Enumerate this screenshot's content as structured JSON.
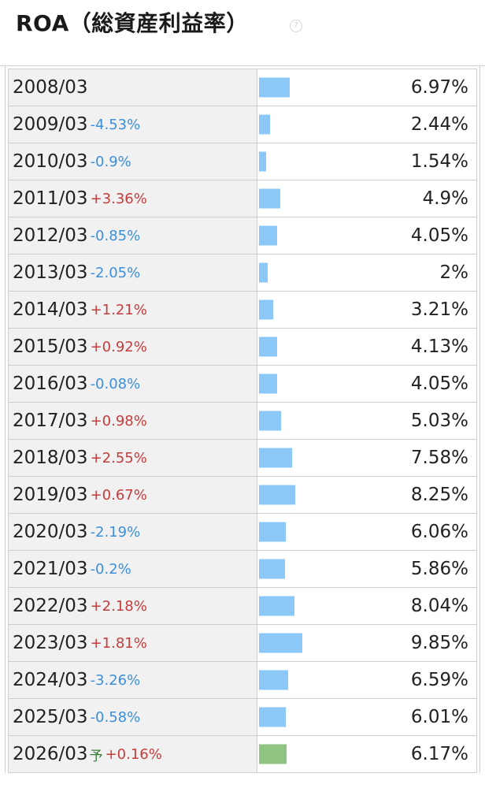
{
  "header": {
    "title": "ROA（総資産利益率）",
    "help_glyph": "?"
  },
  "colors": {
    "bar_actual": "#8cc8f7",
    "bar_forecast": "#8fc482",
    "change_up": "#c43c3c",
    "change_down": "#3c8fd8"
  },
  "chart_data": {
    "type": "bar",
    "title": "ROA（総資産利益率）",
    "value_unit": "%",
    "categories": [
      "2008/03",
      "2009/03",
      "2010/03",
      "2011/03",
      "2012/03",
      "2013/03",
      "2014/03",
      "2015/03",
      "2016/03",
      "2017/03",
      "2018/03",
      "2019/03",
      "2020/03",
      "2021/03",
      "2022/03",
      "2023/03",
      "2024/03",
      "2025/03",
      "2026/03"
    ],
    "values": [
      6.97,
      2.44,
      1.54,
      4.9,
      4.05,
      2,
      3.21,
      4.13,
      4.05,
      5.03,
      7.58,
      8.25,
      6.06,
      5.86,
      8.04,
      9.85,
      6.59,
      6.01,
      6.17
    ],
    "value_labels": [
      "6.97%",
      "2.44%",
      "1.54%",
      "4.9%",
      "4.05%",
      "2%",
      "3.21%",
      "4.13%",
      "4.05%",
      "5.03%",
      "7.58%",
      "8.25%",
      "6.06%",
      "5.86%",
      "8.04%",
      "9.85%",
      "6.59%",
      "6.01%",
      "6.17%"
    ],
    "changes": [
      "",
      "-4.53%",
      "-0.9%",
      "+3.36%",
      "-0.85%",
      "-2.05%",
      "+1.21%",
      "+0.92%",
      "-0.08%",
      "+0.98%",
      "+2.55%",
      "+0.67%",
      "-2.19%",
      "-0.2%",
      "+2.18%",
      "+1.81%",
      "-3.26%",
      "-0.58%",
      "+0.16%"
    ],
    "forecast": [
      false,
      false,
      false,
      false,
      false,
      false,
      false,
      false,
      false,
      false,
      false,
      false,
      false,
      false,
      false,
      false,
      false,
      false,
      true
    ],
    "forecast_marker": "予",
    "value_max": 10
  }
}
